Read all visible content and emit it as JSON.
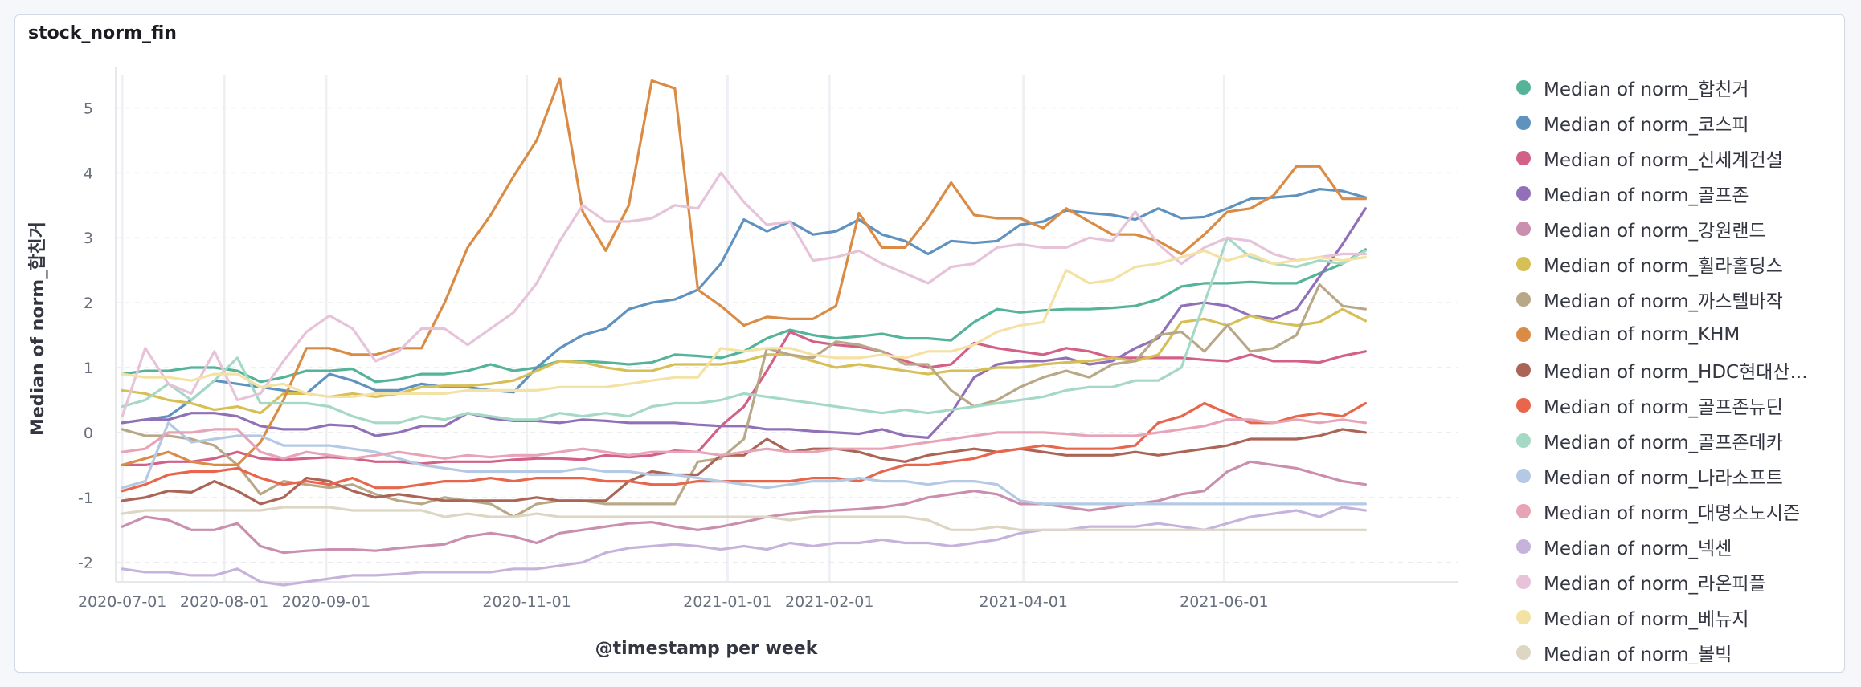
{
  "panel": {
    "title": "stock_norm_fin"
  },
  "chart_data": {
    "type": "line",
    "title": "stock_norm_fin",
    "xlabel": "@timestamp per week",
    "ylabel": "Median of norm_합친거",
    "ylim": [
      -2.3,
      5.5
    ],
    "yticks": [
      5,
      4,
      3,
      2,
      1,
      0,
      -1,
      -2
    ],
    "grid": true,
    "legend_position": "right",
    "x": [
      "2020-07-01",
      "2020-07-08",
      "2020-07-15",
      "2020-07-22",
      "2020-07-29",
      "2020-08-05",
      "2020-08-12",
      "2020-08-19",
      "2020-08-26",
      "2020-09-02",
      "2020-09-09",
      "2020-09-16",
      "2020-09-23",
      "2020-09-30",
      "2020-10-07",
      "2020-10-14",
      "2020-10-21",
      "2020-10-28",
      "2020-11-04",
      "2020-11-11",
      "2020-11-18",
      "2020-11-25",
      "2020-12-02",
      "2020-12-09",
      "2020-12-16",
      "2020-12-23",
      "2020-12-30",
      "2021-01-06",
      "2021-01-13",
      "2021-01-20",
      "2021-01-27",
      "2021-02-03",
      "2021-02-10",
      "2021-02-17",
      "2021-02-24",
      "2021-03-03",
      "2021-03-10",
      "2021-03-17",
      "2021-03-24",
      "2021-03-31",
      "2021-04-07",
      "2021-04-14",
      "2021-04-21",
      "2021-04-28",
      "2021-05-05",
      "2021-05-12",
      "2021-05-19",
      "2021-05-26",
      "2021-06-02",
      "2021-06-09",
      "2021-06-16",
      "2021-06-23",
      "2021-06-30",
      "2021-07-07",
      "2021-07-14"
    ],
    "xticks": [
      {
        "label": "2020-07-01",
        "at": "2020-07-01"
      },
      {
        "label": "2020-08-01",
        "at": "2020-08-01"
      },
      {
        "label": "2020-09-01",
        "at": "2020-09-01"
      },
      {
        "label": "2020-11-01",
        "at": "2020-11-01"
      },
      {
        "label": "2021-01-01",
        "at": "2021-01-01"
      },
      {
        "label": "2021-02-01",
        "at": "2021-02-01"
      },
      {
        "label": "2021-04-01",
        "at": "2021-04-01"
      },
      {
        "label": "2021-06-01",
        "at": "2021-06-01"
      }
    ],
    "series": [
      {
        "name": "Median of norm_합친거",
        "color": "#54b399",
        "values": [
          0.9,
          0.95,
          0.95,
          1.0,
          1.0,
          0.95,
          0.78,
          0.85,
          0.95,
          0.95,
          0.98,
          0.78,
          0.82,
          0.9,
          0.9,
          0.95,
          1.05,
          0.95,
          1.0,
          1.1,
          1.1,
          1.08,
          1.05,
          1.08,
          1.2,
          1.18,
          1.15,
          1.25,
          1.45,
          1.58,
          1.5,
          1.45,
          1.48,
          1.52,
          1.45,
          1.45,
          1.42,
          1.7,
          1.9,
          1.85,
          1.88,
          1.9,
          1.9,
          1.92,
          1.95,
          2.05,
          2.25,
          2.3,
          2.3,
          2.32,
          2.3,
          2.3,
          2.45,
          2.6,
          2.82
        ]
      },
      {
        "name": "Median of norm_코스피",
        "color": "#6092c0",
        "values": [
          0.15,
          0.2,
          0.25,
          0.5,
          0.8,
          0.75,
          0.7,
          0.65,
          0.6,
          0.9,
          0.8,
          0.65,
          0.65,
          0.75,
          0.7,
          0.7,
          0.65,
          0.62,
          1.0,
          1.3,
          1.5,
          1.6,
          1.9,
          2.0,
          2.05,
          2.2,
          2.6,
          3.28,
          3.1,
          3.25,
          3.05,
          3.1,
          3.28,
          3.05,
          2.95,
          2.75,
          2.95,
          2.92,
          2.95,
          3.2,
          3.25,
          3.42,
          3.38,
          3.35,
          3.28,
          3.45,
          3.3,
          3.32,
          3.45,
          3.6,
          3.62,
          3.65,
          3.75,
          3.72,
          3.62
        ]
      },
      {
        "name": "Median of norm_신세계건설",
        "color": "#d36086",
        "values": [
          -0.5,
          -0.5,
          -0.45,
          -0.45,
          -0.4,
          -0.3,
          -0.4,
          -0.42,
          -0.4,
          -0.38,
          -0.4,
          -0.45,
          -0.45,
          -0.48,
          -0.45,
          -0.45,
          -0.45,
          -0.42,
          -0.4,
          -0.4,
          -0.42,
          -0.35,
          -0.38,
          -0.35,
          -0.28,
          -0.3,
          0.1,
          0.4,
          0.95,
          1.55,
          1.4,
          1.35,
          1.32,
          1.25,
          1.1,
          1.0,
          1.05,
          1.38,
          1.3,
          1.25,
          1.2,
          1.3,
          1.25,
          1.15,
          1.15,
          1.15,
          1.15,
          1.12,
          1.1,
          1.2,
          1.1,
          1.1,
          1.08,
          1.18,
          1.25
        ]
      },
      {
        "name": "Median of norm_골프존",
        "color": "#9170b8",
        "values": [
          0.15,
          0.2,
          0.2,
          0.3,
          0.3,
          0.25,
          0.1,
          0.05,
          0.05,
          0.12,
          0.1,
          -0.05,
          0.0,
          0.1,
          0.1,
          0.3,
          0.22,
          0.18,
          0.18,
          0.15,
          0.2,
          0.18,
          0.15,
          0.15,
          0.15,
          0.12,
          0.1,
          0.1,
          0.05,
          0.05,
          0.02,
          0.0,
          -0.02,
          0.05,
          -0.05,
          -0.08,
          0.3,
          0.85,
          1.05,
          1.1,
          1.1,
          1.15,
          1.05,
          1.1,
          1.3,
          1.45,
          1.95,
          2.0,
          1.95,
          1.8,
          1.75,
          1.9,
          2.4,
          2.9,
          3.45
        ]
      },
      {
        "name": "Median of norm_강원랜드",
        "color": "#ca8eae",
        "values": [
          -1.45,
          -1.3,
          -1.35,
          -1.5,
          -1.5,
          -1.4,
          -1.75,
          -1.85,
          -1.82,
          -1.8,
          -1.8,
          -1.82,
          -1.78,
          -1.75,
          -1.72,
          -1.6,
          -1.55,
          -1.6,
          -1.7,
          -1.55,
          -1.5,
          -1.45,
          -1.4,
          -1.38,
          -1.45,
          -1.5,
          -1.45,
          -1.38,
          -1.3,
          -1.25,
          -1.22,
          -1.2,
          -1.18,
          -1.15,
          -1.1,
          -1.0,
          -0.95,
          -0.9,
          -0.95,
          -1.1,
          -1.1,
          -1.15,
          -1.2,
          -1.15,
          -1.1,
          -1.05,
          -0.95,
          -0.9,
          -0.6,
          -0.45,
          -0.5,
          -0.55,
          -0.65,
          -0.75,
          -0.8
        ]
      },
      {
        "name": "Median of norm_휠라홀딩스",
        "color": "#d6bf57",
        "values": [
          0.65,
          0.6,
          0.5,
          0.45,
          0.35,
          0.4,
          0.3,
          0.6,
          0.6,
          0.55,
          0.6,
          0.55,
          0.6,
          0.7,
          0.72,
          0.72,
          0.75,
          0.8,
          0.95,
          1.1,
          1.08,
          1.0,
          0.95,
          0.95,
          1.05,
          1.05,
          1.05,
          1.1,
          1.2,
          1.2,
          1.1,
          1.0,
          1.05,
          1.0,
          0.95,
          0.9,
          0.95,
          0.95,
          1.0,
          1.0,
          1.05,
          1.08,
          1.1,
          1.15,
          1.1,
          1.2,
          1.7,
          1.75,
          1.65,
          1.8,
          1.7,
          1.65,
          1.7,
          1.9,
          1.72
        ]
      },
      {
        "name": "Median of norm_까스텔바작",
        "color": "#b9a888",
        "values": [
          0.05,
          -0.05,
          -0.05,
          -0.1,
          -0.2,
          -0.5,
          -0.95,
          -0.75,
          -0.8,
          -0.85,
          -0.8,
          -0.95,
          -1.05,
          -1.1,
          -1.0,
          -1.05,
          -1.1,
          -1.3,
          -1.1,
          -1.05,
          -1.05,
          -1.1,
          -1.1,
          -1.1,
          -1.1,
          -0.45,
          -0.4,
          -0.1,
          1.3,
          1.2,
          1.15,
          1.4,
          1.35,
          1.25,
          1.05,
          1.05,
          0.65,
          0.4,
          0.5,
          0.7,
          0.85,
          0.95,
          0.85,
          1.05,
          1.1,
          1.5,
          1.55,
          1.25,
          1.65,
          1.25,
          1.3,
          1.5,
          2.28,
          1.95,
          1.9
        ]
      },
      {
        "name": "Median of norm_KHM",
        "color": "#da8b45",
        "values": [
          -0.5,
          -0.4,
          -0.3,
          -0.45,
          -0.5,
          -0.5,
          -0.15,
          0.5,
          1.3,
          1.3,
          1.2,
          1.2,
          1.3,
          1.3,
          2.0,
          2.85,
          3.35,
          3.95,
          4.5,
          5.45,
          3.4,
          2.8,
          3.5,
          5.42,
          5.3,
          2.2,
          1.95,
          1.65,
          1.78,
          1.75,
          1.75,
          1.95,
          3.38,
          2.85,
          2.85,
          3.3,
          3.85,
          3.35,
          3.3,
          3.3,
          3.15,
          3.45,
          3.25,
          3.05,
          3.05,
          2.95,
          2.75,
          3.05,
          3.4,
          3.45,
          3.65,
          4.1,
          4.1,
          3.6,
          3.6
        ]
      },
      {
        "name": "Median of norm_HDC현대산...",
        "color": "#aa6556",
        "values": [
          -1.05,
          -1.0,
          -0.9,
          -0.92,
          -0.75,
          -0.9,
          -1.1,
          -1.0,
          -0.7,
          -0.75,
          -0.9,
          -1.0,
          -0.95,
          -1.0,
          -1.05,
          -1.05,
          -1.05,
          -1.05,
          -1.0,
          -1.05,
          -1.05,
          -1.05,
          -0.75,
          -0.6,
          -0.65,
          -0.65,
          -0.35,
          -0.35,
          -0.1,
          -0.3,
          -0.25,
          -0.25,
          -0.3,
          -0.4,
          -0.45,
          -0.35,
          -0.3,
          -0.25,
          -0.3,
          -0.25,
          -0.3,
          -0.35,
          -0.35,
          -0.35,
          -0.3,
          -0.35,
          -0.3,
          -0.25,
          -0.2,
          -0.1,
          -0.1,
          -0.1,
          -0.05,
          0.05,
          0.0
        ]
      },
      {
        "name": "Median of norm_골프존뉴딘",
        "color": "#e7664c",
        "values": [
          -0.9,
          -0.8,
          -0.65,
          -0.6,
          -0.6,
          -0.55,
          -0.7,
          -0.8,
          -0.75,
          -0.8,
          -0.7,
          -0.85,
          -0.85,
          -0.8,
          -0.75,
          -0.75,
          -0.7,
          -0.75,
          -0.7,
          -0.7,
          -0.7,
          -0.75,
          -0.75,
          -0.8,
          -0.8,
          -0.75,
          -0.75,
          -0.75,
          -0.75,
          -0.75,
          -0.7,
          -0.7,
          -0.75,
          -0.6,
          -0.5,
          -0.5,
          -0.45,
          -0.4,
          -0.3,
          -0.25,
          -0.2,
          -0.25,
          -0.25,
          -0.25,
          -0.2,
          0.15,
          0.25,
          0.45,
          0.3,
          0.15,
          0.15,
          0.25,
          0.3,
          0.25,
          0.45
        ]
      },
      {
        "name": "Median of norm_골프존데카",
        "color": "#a5d9c6",
        "values": [
          0.4,
          0.5,
          0.75,
          0.5,
          0.8,
          1.15,
          0.45,
          0.45,
          0.45,
          0.4,
          0.25,
          0.15,
          0.15,
          0.25,
          0.2,
          0.3,
          0.25,
          0.2,
          0.2,
          0.3,
          0.25,
          0.3,
          0.25,
          0.4,
          0.45,
          0.45,
          0.5,
          0.6,
          0.55,
          0.5,
          0.45,
          0.4,
          0.35,
          0.3,
          0.35,
          0.3,
          0.35,
          0.4,
          0.45,
          0.5,
          0.55,
          0.65,
          0.7,
          0.7,
          0.8,
          0.8,
          1.0,
          2.0,
          3.0,
          2.7,
          2.6,
          2.55,
          2.65,
          2.6,
          2.8
        ]
      },
      {
        "name": "Median of norm_나라소프트",
        "color": "#b4c9e4",
        "values": [
          -0.85,
          -0.75,
          0.15,
          -0.15,
          -0.1,
          -0.05,
          -0.05,
          -0.2,
          -0.2,
          -0.2,
          -0.25,
          -0.3,
          -0.4,
          -0.5,
          -0.55,
          -0.6,
          -0.6,
          -0.6,
          -0.6,
          -0.6,
          -0.55,
          -0.6,
          -0.6,
          -0.65,
          -0.65,
          -0.7,
          -0.75,
          -0.8,
          -0.85,
          -0.8,
          -0.75,
          -0.75,
          -0.7,
          -0.75,
          -0.75,
          -0.8,
          -0.75,
          -0.75,
          -0.8,
          -1.05,
          -1.1,
          -1.1,
          -1.1,
          -1.1,
          -1.1,
          -1.1,
          -1.1,
          -1.1,
          -1.1,
          -1.1,
          -1.1,
          -1.1,
          -1.1,
          -1.1,
          -1.1
        ]
      },
      {
        "name": "Median of norm_대명소노시즌",
        "color": "#e8a4b7",
        "values": [
          -0.3,
          -0.25,
          0.0,
          0.0,
          0.05,
          0.05,
          -0.3,
          -0.4,
          -0.3,
          -0.35,
          -0.4,
          -0.35,
          -0.3,
          -0.35,
          -0.4,
          -0.35,
          -0.38,
          -0.35,
          -0.35,
          -0.3,
          -0.25,
          -0.3,
          -0.35,
          -0.3,
          -0.3,
          -0.3,
          -0.35,
          -0.3,
          -0.25,
          -0.3,
          -0.3,
          -0.25,
          -0.25,
          -0.25,
          -0.2,
          -0.15,
          -0.1,
          -0.05,
          0.0,
          0.0,
          0.0,
          -0.02,
          -0.05,
          -0.05,
          -0.05,
          0.0,
          0.05,
          0.1,
          0.2,
          0.2,
          0.15,
          0.2,
          0.15,
          0.2,
          0.15
        ]
      },
      {
        "name": "Median of norm_넥센",
        "color": "#c6b3dc",
        "values": [
          -2.1,
          -2.15,
          -2.15,
          -2.2,
          -2.2,
          -2.1,
          -2.3,
          -2.35,
          -2.3,
          -2.25,
          -2.2,
          -2.2,
          -2.18,
          -2.15,
          -2.15,
          -2.15,
          -2.15,
          -2.1,
          -2.1,
          -2.05,
          -2.0,
          -1.85,
          -1.78,
          -1.75,
          -1.72,
          -1.75,
          -1.8,
          -1.75,
          -1.8,
          -1.7,
          -1.75,
          -1.7,
          -1.7,
          -1.65,
          -1.7,
          -1.7,
          -1.75,
          -1.7,
          -1.65,
          -1.55,
          -1.5,
          -1.5,
          -1.45,
          -1.45,
          -1.45,
          -1.4,
          -1.45,
          -1.5,
          -1.4,
          -1.3,
          -1.25,
          -1.2,
          -1.3,
          -1.15,
          -1.2
        ]
      },
      {
        "name": "Median of norm_라온피플",
        "color": "#e7c3d9",
        "values": [
          0.25,
          1.3,
          0.75,
          0.6,
          1.25,
          0.5,
          0.6,
          1.1,
          1.55,
          1.8,
          1.6,
          1.1,
          1.25,
          1.6,
          1.6,
          1.35,
          1.6,
          1.85,
          2.3,
          2.95,
          3.5,
          3.25,
          3.25,
          3.3,
          3.5,
          3.45,
          4.0,
          3.55,
          3.2,
          3.25,
          2.65,
          2.7,
          2.8,
          2.6,
          2.45,
          2.3,
          2.55,
          2.6,
          2.85,
          2.9,
          2.85,
          2.85,
          3.0,
          2.95,
          3.4,
          2.9,
          2.6,
          2.85,
          3.0,
          2.95,
          2.75,
          2.65,
          2.7,
          2.75,
          2.75
        ]
      },
      {
        "name": "Median of norm_베뉴지",
        "color": "#f3e2a3",
        "values": [
          0.9,
          0.85,
          0.85,
          0.8,
          0.9,
          0.9,
          0.7,
          0.75,
          0.6,
          0.55,
          0.55,
          0.6,
          0.6,
          0.6,
          0.6,
          0.65,
          0.65,
          0.65,
          0.65,
          0.7,
          0.7,
          0.7,
          0.75,
          0.8,
          0.85,
          0.85,
          1.3,
          1.25,
          1.3,
          1.3,
          1.2,
          1.15,
          1.15,
          1.2,
          1.15,
          1.25,
          1.25,
          1.35,
          1.55,
          1.65,
          1.7,
          2.5,
          2.3,
          2.35,
          2.55,
          2.6,
          2.7,
          2.8,
          2.65,
          2.75,
          2.6,
          2.65,
          2.7,
          2.65,
          2.7
        ]
      },
      {
        "name": "Median of norm_볼빅",
        "color": "#ddd6c3",
        "values": [
          -1.25,
          -1.2,
          -1.2,
          -1.2,
          -1.2,
          -1.2,
          -1.2,
          -1.15,
          -1.15,
          -1.15,
          -1.2,
          -1.2,
          -1.2,
          -1.2,
          -1.3,
          -1.25,
          -1.3,
          -1.3,
          -1.25,
          -1.3,
          -1.3,
          -1.3,
          -1.3,
          -1.3,
          -1.3,
          -1.3,
          -1.3,
          -1.3,
          -1.3,
          -1.35,
          -1.3,
          -1.3,
          -1.3,
          -1.3,
          -1.3,
          -1.35,
          -1.5,
          -1.5,
          -1.45,
          -1.5,
          -1.5,
          -1.5,
          -1.5,
          -1.5,
          -1.5,
          -1.5,
          -1.5,
          -1.5,
          -1.5,
          -1.5,
          -1.5,
          -1.5,
          -1.5,
          -1.5,
          -1.5
        ]
      }
    ]
  }
}
